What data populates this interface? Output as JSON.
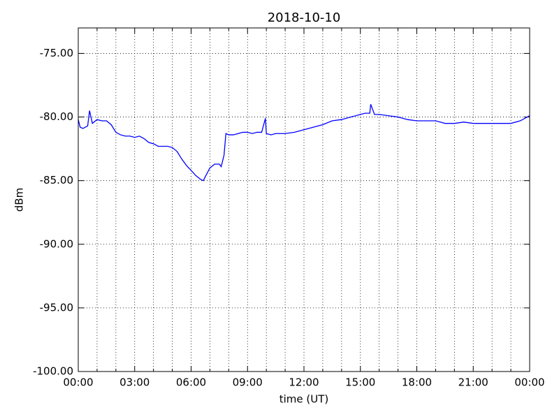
{
  "chart_data": {
    "type": "line",
    "title": "2018-10-10",
    "x_label": "time (UT)",
    "y_label": "dBm",
    "xlim": [
      0,
      24
    ],
    "xticks": [
      {
        "value": 0,
        "label": "00:00"
      },
      {
        "value": 3,
        "label": "03:00"
      },
      {
        "value": 6,
        "label": "06:00"
      },
      {
        "value": 9,
        "label": "09:00"
      },
      {
        "value": 12,
        "label": "12:00"
      },
      {
        "value": 15,
        "label": "15:00"
      },
      {
        "value": 18,
        "label": "18:00"
      },
      {
        "value": 21,
        "label": "21:00"
      },
      {
        "value": 24,
        "label": "00:00"
      }
    ],
    "xminor_ticks": [
      1,
      2,
      4,
      5,
      7,
      8,
      10,
      11,
      13,
      14,
      16,
      17,
      19,
      20,
      22,
      23
    ],
    "ylim": [
      -100,
      -73
    ],
    "yticks": [
      {
        "value": -100,
        "label": "-100.00"
      },
      {
        "value": -95,
        "label": "-95.00"
      },
      {
        "value": -90,
        "label": "-90.00"
      },
      {
        "value": -85,
        "label": "-85.00"
      },
      {
        "value": -80,
        "label": "-80.00"
      },
      {
        "value": -75,
        "label": "-75.00"
      }
    ],
    "grid": true,
    "series": [
      {
        "name": "dBm",
        "color": "#0000ff",
        "x": [
          0,
          0.1,
          0.25,
          0.5,
          0.6,
          0.75,
          1.0,
          1.25,
          1.5,
          1.75,
          2.0,
          2.25,
          2.5,
          2.75,
          3.0,
          3.25,
          3.5,
          3.75,
          4.0,
          4.25,
          4.5,
          4.75,
          5.0,
          5.25,
          5.5,
          5.75,
          6.0,
          6.25,
          6.5,
          6.65,
          6.75,
          7.0,
          7.25,
          7.5,
          7.6,
          7.75,
          7.85,
          8.0,
          8.25,
          8.5,
          8.75,
          9.0,
          9.25,
          9.5,
          9.75,
          9.95,
          10.0,
          10.25,
          10.5,
          11.0,
          11.5,
          12.0,
          12.5,
          13.0,
          13.5,
          14.0,
          14.5,
          15.0,
          15.25,
          15.5,
          15.55,
          15.75,
          16.0,
          16.5,
          17.0,
          17.5,
          18.0,
          18.5,
          19.0,
          19.5,
          20.0,
          20.5,
          21.0,
          21.5,
          22.0,
          22.5,
          23.0,
          23.5,
          24.0
        ],
        "values": [
          -80.2,
          -80.8,
          -80.9,
          -80.7,
          -79.5,
          -80.5,
          -80.2,
          -80.3,
          -80.3,
          -80.6,
          -81.2,
          -81.4,
          -81.5,
          -81.5,
          -81.6,
          -81.5,
          -81.7,
          -82.0,
          -82.1,
          -82.3,
          -82.3,
          -82.3,
          -82.4,
          -82.7,
          -83.3,
          -83.8,
          -84.2,
          -84.6,
          -84.9,
          -85.0,
          -84.7,
          -84.0,
          -83.7,
          -83.7,
          -83.9,
          -83.0,
          -81.3,
          -81.4,
          -81.4,
          -81.3,
          -81.2,
          -81.2,
          -81.3,
          -81.2,
          -81.2,
          -80.1,
          -81.3,
          -81.4,
          -81.3,
          -81.3,
          -81.2,
          -81.0,
          -80.8,
          -80.6,
          -80.3,
          -80.2,
          -80.0,
          -79.8,
          -79.7,
          -79.7,
          -79.0,
          -79.8,
          -79.8,
          -79.9,
          -80.0,
          -80.2,
          -80.3,
          -80.3,
          -80.3,
          -80.5,
          -80.5,
          -80.4,
          -80.5,
          -80.5,
          -80.5,
          -80.5,
          -80.5,
          -80.3,
          -79.9
        ]
      }
    ]
  }
}
